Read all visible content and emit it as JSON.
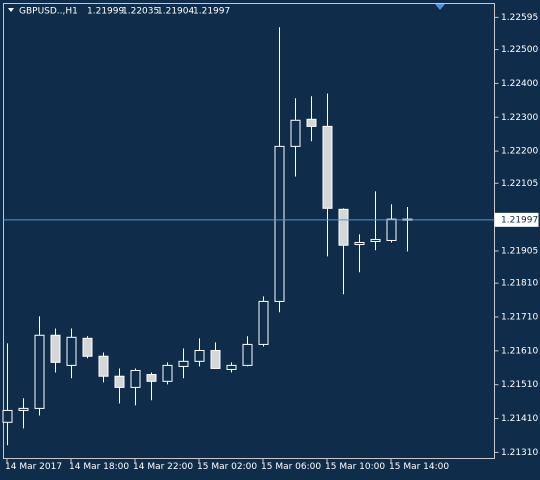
{
  "chart_data": {
    "type": "candlestick",
    "title": "GBPUSD..,H1",
    "categories": [
      "14 Mar 2017",
      null,
      null,
      null,
      "14 Mar 18:00",
      null,
      null,
      null,
      "14 Mar 22:00",
      null,
      null,
      null,
      "15 Mar 02:00",
      null,
      null,
      null,
      "15 Mar 06:00",
      null,
      null,
      null,
      "15 Mar 10:00",
      null,
      null,
      null,
      "15 Mar 14:00",
      null
    ],
    "open": [
      1.21399,
      1.21434,
      1.2144,
      1.21656,
      1.21567,
      1.21647,
      1.21594,
      1.21535,
      1.21502,
      1.2154,
      1.2152,
      1.21564,
      1.21579,
      1.21611,
      1.21555,
      1.21567,
      1.21629,
      1.21756,
      1.22214,
      1.22294,
      1.22273,
      1.22028,
      1.21924,
      1.21933,
      1.21936,
      1.21999
    ],
    "high": [
      1.21632,
      1.2147,
      1.21712,
      1.21676,
      1.21676,
      1.21653,
      1.21605,
      1.21558,
      1.21558,
      1.21546,
      1.21576,
      1.21617,
      1.21647,
      1.21635,
      1.21576,
      1.21653,
      1.21771,
      1.22566,
      1.22356,
      1.22362,
      1.2237,
      1.22031,
      1.21954,
      1.22081,
      1.22043,
      1.22035
    ],
    "low": [
      1.21331,
      1.21381,
      1.21419,
      1.21546,
      1.21529,
      1.21588,
      1.21517,
      1.21455,
      1.21449,
      1.21464,
      1.21511,
      1.21529,
      1.21564,
      1.21558,
      1.21546,
      1.21564,
      1.21623,
      1.21724,
      1.22125,
      1.22229,
      1.21889,
      1.21777,
      1.21842,
      1.21907,
      1.2193,
      1.21904
    ],
    "close": [
      1.21434,
      1.2144,
      1.21656,
      1.21576,
      1.2165,
      1.21594,
      1.21535,
      1.21502,
      1.21552,
      1.2152,
      1.21567,
      1.21579,
      1.21611,
      1.21558,
      1.21567,
      1.21629,
      1.21756,
      1.22214,
      1.22291,
      1.22273,
      1.22031,
      1.21922,
      1.2193,
      1.21939,
      1.21999,
      1.21997
    ],
    "up_color": "#0f2d4a",
    "down_color": "#d6d6d6",
    "line_color": "#ffffff",
    "bid_color": "#4f94d4",
    "ylim": [
      1.21292,
      1.22636
    ],
    "yticks": [
      1.22595,
      {
        "value": 1.225,
        "label": "1.22500"
      },
      {
        "value": 1.224,
        "label": "1.22400"
      },
      {
        "value": 1.223,
        "label": "1.22300"
      },
      {
        "value": 1.222,
        "label": "1.22200"
      },
      1.22105,
      1.21905,
      {
        "value": 1.2181,
        "label": "1.21810"
      },
      {
        "value": 1.2171,
        "label": "1.21710"
      },
      {
        "value": 1.2161,
        "label": "1.21610"
      },
      {
        "value": 1.2151,
        "label": "1.21510"
      },
      {
        "value": 1.2141,
        "label": "1.21410"
      },
      {
        "value": 1.2131,
        "label": "1.21310"
      }
    ]
  }
}
